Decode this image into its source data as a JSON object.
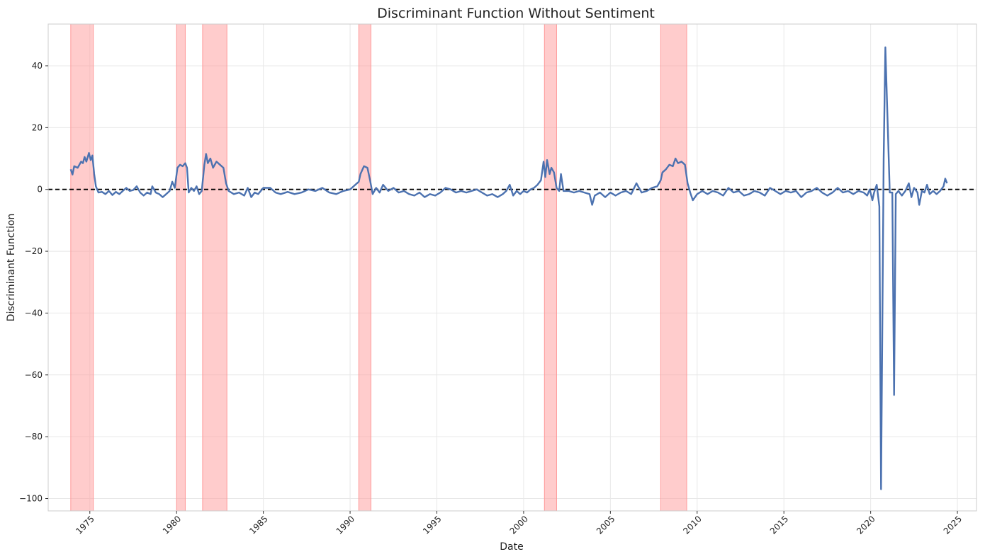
{
  "chart_data": {
    "type": "line",
    "title": "Discriminant Function Without Sentiment",
    "xlabel": "Date",
    "ylabel": "Discriminant Function",
    "xlim": [
      1972.6,
      2026.1
    ],
    "ylim": [
      -104,
      53.5
    ],
    "xticks": [
      1975,
      1980,
      1985,
      1990,
      1995,
      2000,
      2005,
      2010,
      2015,
      2020,
      2025
    ],
    "yticks": [
      -100,
      -80,
      -60,
      -40,
      -20,
      0,
      20,
      40
    ],
    "ytick_labels": [
      "−100",
      "−80",
      "−60",
      "−40",
      "−20",
      "0",
      "20",
      "40"
    ],
    "grid": true,
    "reference_line": {
      "y": 0,
      "style": "dashed",
      "color": "#000000"
    },
    "recession_periods": [
      [
        1973.9,
        1975.2
      ],
      [
        1980.0,
        1980.5
      ],
      [
        1981.5,
        1982.9
      ],
      [
        1990.5,
        1991.2
      ],
      [
        2001.2,
        2001.9
      ],
      [
        2007.9,
        2009.4
      ]
    ],
    "colors": {
      "line": "#4c72b0",
      "shading": "#ff9999",
      "reference": "#000000"
    },
    "series": [
      {
        "points": [
          [
            1973.9,
            6.5
          ],
          [
            1974.0,
            4.8
          ],
          [
            1974.1,
            7.5
          ],
          [
            1974.3,
            7.0
          ],
          [
            1974.5,
            9.0
          ],
          [
            1974.6,
            8.5
          ],
          [
            1974.7,
            10.5
          ],
          [
            1974.8,
            9.0
          ],
          [
            1974.95,
            11.8
          ],
          [
            1975.05,
            9.5
          ],
          [
            1975.15,
            11.0
          ],
          [
            1975.25,
            5.0
          ],
          [
            1975.35,
            1.0
          ],
          [
            1975.5,
            -1.0
          ],
          [
            1975.7,
            -0.8
          ],
          [
            1975.9,
            -1.5
          ],
          [
            1976.1,
            -0.5
          ],
          [
            1976.3,
            -1.8
          ],
          [
            1976.5,
            -0.8
          ],
          [
            1976.7,
            -1.5
          ],
          [
            1976.9,
            -0.5
          ],
          [
            1977.1,
            0.5
          ],
          [
            1977.3,
            -0.5
          ],
          [
            1977.5,
            -0.2
          ],
          [
            1977.7,
            1.0
          ],
          [
            1977.9,
            -1.0
          ],
          [
            1978.1,
            -2.0
          ],
          [
            1978.3,
            -1.0
          ],
          [
            1978.5,
            -1.5
          ],
          [
            1978.6,
            1.0
          ],
          [
            1978.8,
            -1.0
          ],
          [
            1979.0,
            -1.5
          ],
          [
            1979.2,
            -2.5
          ],
          [
            1979.4,
            -1.5
          ],
          [
            1979.6,
            -0.5
          ],
          [
            1979.75,
            2.5
          ],
          [
            1979.9,
            0.5
          ],
          [
            1980.05,
            7.0
          ],
          [
            1980.2,
            8.0
          ],
          [
            1980.35,
            7.5
          ],
          [
            1980.5,
            8.5
          ],
          [
            1980.6,
            7.0
          ],
          [
            1980.7,
            -1.0
          ],
          [
            1980.85,
            0.5
          ],
          [
            1981.0,
            -0.5
          ],
          [
            1981.15,
            1.0
          ],
          [
            1981.3,
            -1.5
          ],
          [
            1981.45,
            -0.5
          ],
          [
            1981.6,
            8.0
          ],
          [
            1981.7,
            11.5
          ],
          [
            1981.8,
            8.5
          ],
          [
            1981.95,
            10.0
          ],
          [
            1982.1,
            7.0
          ],
          [
            1982.3,
            9.0
          ],
          [
            1982.5,
            8.0
          ],
          [
            1982.7,
            7.0
          ],
          [
            1982.85,
            2.0
          ],
          [
            1983.0,
            -0.5
          ],
          [
            1983.3,
            -1.5
          ],
          [
            1983.6,
            -1.0
          ],
          [
            1983.9,
            -2.0
          ],
          [
            1984.1,
            0.5
          ],
          [
            1984.3,
            -2.5
          ],
          [
            1984.5,
            -1.0
          ],
          [
            1984.7,
            -1.5
          ],
          [
            1985.0,
            0.5
          ],
          [
            1985.4,
            0.5
          ],
          [
            1985.7,
            -1.0
          ],
          [
            1986.0,
            -1.5
          ],
          [
            1986.4,
            -0.8
          ],
          [
            1986.8,
            -1.5
          ],
          [
            1987.2,
            -1.0
          ],
          [
            1987.6,
            0.0
          ],
          [
            1988.0,
            -0.5
          ],
          [
            1988.4,
            0.5
          ],
          [
            1988.8,
            -1.0
          ],
          [
            1989.2,
            -1.5
          ],
          [
            1989.6,
            -0.5
          ],
          [
            1990.0,
            0.0
          ],
          [
            1990.3,
            1.5
          ],
          [
            1990.5,
            2.5
          ],
          [
            1990.6,
            5.0
          ],
          [
            1990.8,
            7.5
          ],
          [
            1991.0,
            7.0
          ],
          [
            1991.15,
            3.0
          ],
          [
            1991.3,
            -1.5
          ],
          [
            1991.5,
            0.5
          ],
          [
            1991.7,
            -1.0
          ],
          [
            1991.9,
            1.5
          ],
          [
            1992.2,
            -0.5
          ],
          [
            1992.5,
            0.5
          ],
          [
            1992.8,
            -1.0
          ],
          [
            1993.1,
            -0.5
          ],
          [
            1993.4,
            -1.5
          ],
          [
            1993.7,
            -2.0
          ],
          [
            1994.0,
            -1.0
          ],
          [
            1994.3,
            -2.5
          ],
          [
            1994.6,
            -1.5
          ],
          [
            1994.9,
            -2.0
          ],
          [
            1995.2,
            -1.0
          ],
          [
            1995.5,
            0.5
          ],
          [
            1995.8,
            0.0
          ],
          [
            1996.1,
            -1.0
          ],
          [
            1996.4,
            -0.5
          ],
          [
            1996.7,
            -1.0
          ],
          [
            1997.0,
            -0.5
          ],
          [
            1997.3,
            0.0
          ],
          [
            1997.6,
            -1.0
          ],
          [
            1997.9,
            -2.0
          ],
          [
            1998.2,
            -1.5
          ],
          [
            1998.5,
            -2.5
          ],
          [
            1998.8,
            -1.5
          ],
          [
            1999.0,
            -0.5
          ],
          [
            1999.2,
            1.5
          ],
          [
            1999.4,
            -2.0
          ],
          [
            1999.6,
            -0.5
          ],
          [
            1999.8,
            -1.5
          ],
          [
            2000.0,
            -0.5
          ],
          [
            2000.2,
            -1.0
          ],
          [
            2000.4,
            0.0
          ],
          [
            2000.6,
            0.5
          ],
          [
            2000.8,
            1.5
          ],
          [
            2001.0,
            3.0
          ],
          [
            2001.15,
            9.0
          ],
          [
            2001.25,
            4.0
          ],
          [
            2001.35,
            9.5
          ],
          [
            2001.5,
            5.0
          ],
          [
            2001.6,
            7.0
          ],
          [
            2001.75,
            5.5
          ],
          [
            2001.9,
            0.5
          ],
          [
            2002.05,
            -0.5
          ],
          [
            2002.15,
            5.0
          ],
          [
            2002.3,
            -0.5
          ],
          [
            2002.6,
            -0.5
          ],
          [
            2002.9,
            -1.0
          ],
          [
            2003.2,
            -0.5
          ],
          [
            2003.5,
            -1.0
          ],
          [
            2003.8,
            -1.5
          ],
          [
            2003.95,
            -5.0
          ],
          [
            2004.1,
            -2.0
          ],
          [
            2004.4,
            -1.0
          ],
          [
            2004.7,
            -2.5
          ],
          [
            2005.0,
            -1.0
          ],
          [
            2005.3,
            -2.0
          ],
          [
            2005.6,
            -1.0
          ],
          [
            2005.9,
            -0.5
          ],
          [
            2006.2,
            -1.5
          ],
          [
            2006.5,
            2.0
          ],
          [
            2006.8,
            -1.0
          ],
          [
            2007.1,
            -0.5
          ],
          [
            2007.4,
            0.5
          ],
          [
            2007.7,
            1.0
          ],
          [
            2007.9,
            3.0
          ],
          [
            2008.0,
            5.5
          ],
          [
            2008.2,
            6.5
          ],
          [
            2008.4,
            8.0
          ],
          [
            2008.6,
            7.5
          ],
          [
            2008.75,
            10.0
          ],
          [
            2008.9,
            8.5
          ],
          [
            2009.1,
            9.0
          ],
          [
            2009.3,
            8.0
          ],
          [
            2009.45,
            2.0
          ],
          [
            2009.6,
            -1.0
          ],
          [
            2009.75,
            -3.5
          ],
          [
            2010.0,
            -1.5
          ],
          [
            2010.3,
            -0.5
          ],
          [
            2010.6,
            -1.5
          ],
          [
            2010.9,
            -0.5
          ],
          [
            2011.2,
            -1.0
          ],
          [
            2011.5,
            -2.0
          ],
          [
            2011.8,
            0.5
          ],
          [
            2012.1,
            -1.0
          ],
          [
            2012.4,
            -0.5
          ],
          [
            2012.7,
            -2.0
          ],
          [
            2013.0,
            -1.5
          ],
          [
            2013.3,
            -0.5
          ],
          [
            2013.6,
            -1.0
          ],
          [
            2013.9,
            -2.0
          ],
          [
            2014.2,
            0.5
          ],
          [
            2014.5,
            -0.5
          ],
          [
            2014.8,
            -1.5
          ],
          [
            2015.1,
            -0.5
          ],
          [
            2015.4,
            -1.0
          ],
          [
            2015.7,
            -0.5
          ],
          [
            2016.0,
            -2.5
          ],
          [
            2016.3,
            -1.0
          ],
          [
            2016.6,
            -0.5
          ],
          [
            2016.9,
            0.5
          ],
          [
            2017.2,
            -1.0
          ],
          [
            2017.5,
            -2.0
          ],
          [
            2017.8,
            -1.0
          ],
          [
            2018.1,
            0.5
          ],
          [
            2018.4,
            -1.0
          ],
          [
            2018.7,
            -0.5
          ],
          [
            2019.0,
            -1.5
          ],
          [
            2019.3,
            -0.5
          ],
          [
            2019.6,
            -1.0
          ],
          [
            2019.8,
            -2.0
          ],
          [
            2019.95,
            0.0
          ],
          [
            2020.1,
            -3.5
          ],
          [
            2020.2,
            -1.0
          ],
          [
            2020.35,
            1.5
          ],
          [
            2020.5,
            -5.5
          ],
          [
            2020.6,
            -97.0
          ],
          [
            2020.75,
            10.0
          ],
          [
            2020.85,
            46.0
          ],
          [
            2021.0,
            18.0
          ],
          [
            2021.1,
            -1.0
          ],
          [
            2021.25,
            -1.0
          ],
          [
            2021.35,
            -66.5
          ],
          [
            2021.45,
            -1.5
          ],
          [
            2021.6,
            -0.5
          ],
          [
            2021.8,
            -2.0
          ],
          [
            2022.0,
            -0.5
          ],
          [
            2022.2,
            2.0
          ],
          [
            2022.35,
            -2.5
          ],
          [
            2022.5,
            0.5
          ],
          [
            2022.7,
            -1.0
          ],
          [
            2022.8,
            -5.0
          ],
          [
            2022.95,
            -0.5
          ],
          [
            2023.1,
            -1.0
          ],
          [
            2023.25,
            1.5
          ],
          [
            2023.4,
            -1.5
          ],
          [
            2023.6,
            -0.5
          ],
          [
            2023.8,
            -1.5
          ],
          [
            2024.0,
            -0.5
          ],
          [
            2024.2,
            1.0
          ],
          [
            2024.3,
            3.5
          ],
          [
            2024.4,
            2.0
          ]
        ]
      }
    ]
  }
}
